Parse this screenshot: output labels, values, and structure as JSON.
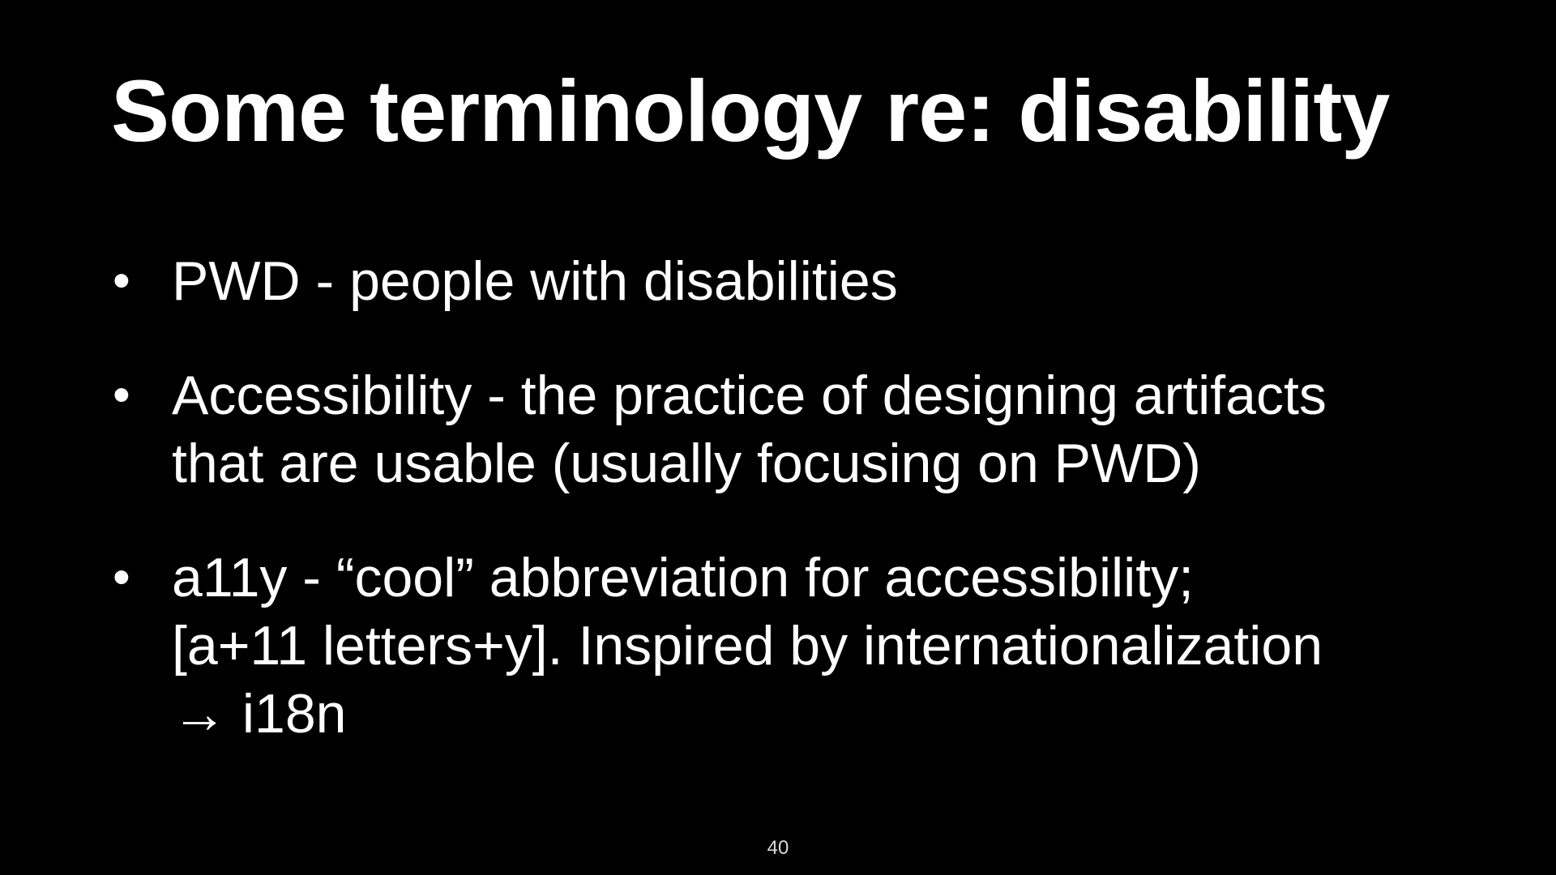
{
  "slide": {
    "title": "Some terminology re: disability",
    "bullet_marker": "•",
    "bullets": [
      {
        "text": "PWD - people with disabilities"
      },
      {
        "text": "Accessibility - the practice of designing artifacts\nthat are usable (usually focusing on PWD)"
      },
      {
        "text": "a11y - “cool” abbreviation for accessibility;\n[a+11 letters+y]. Inspired by internationalization\n→ i18n"
      }
    ],
    "page_number": "40"
  },
  "colors": {
    "background": "#000000",
    "text": "#ffffff"
  }
}
